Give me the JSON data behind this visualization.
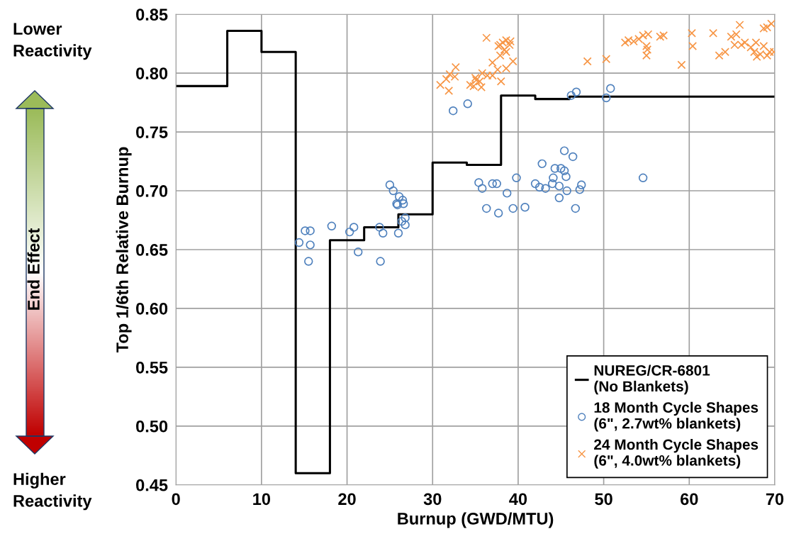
{
  "chart_data": {
    "type": "scatter",
    "xlabel": "Burnup (GWD/MTU)",
    "ylabel": "Top 1/6th Relative Burnup",
    "xlim": [
      0,
      70
    ],
    "xticks": [
      0,
      10,
      20,
      30,
      40,
      50,
      60,
      70
    ],
    "ylim": [
      0.45,
      0.85
    ],
    "yticks": [
      {
        "value": 0.45,
        "label": "0.45"
      },
      {
        "value": 0.5,
        "label": "0.50"
      },
      {
        "value": 0.55,
        "label": "0.55"
      },
      {
        "value": 0.6,
        "label": "0.60"
      },
      {
        "value": 0.65,
        "label": "0.65"
      },
      {
        "value": 0.7,
        "label": "0.70"
      },
      {
        "value": 0.75,
        "label": "0.75"
      },
      {
        "value": 0.8,
        "label": "0.80"
      },
      {
        "value": 0.85,
        "label": "0.85"
      }
    ],
    "grid": true,
    "legend": "bottom right",
    "annotations": [
      "Lower\nReactivity",
      "Higher\nReactivity",
      "End Effect"
    ],
    "series": [
      {
        "name": "NUREG/CR-6801\n(No Blankets)",
        "type": "step",
        "color": "#000000",
        "marker": "none",
        "line_style": "solid",
        "x": [
          0,
          6,
          10,
          14,
          18,
          22,
          26,
          30,
          34,
          38,
          42,
          46,
          70
        ],
        "values": [
          0.789,
          0.836,
          0.818,
          0.46,
          0.658,
          0.669,
          0.68,
          0.724,
          0.722,
          0.781,
          0.778,
          0.78,
          0.78
        ]
      },
      {
        "name": "18 Month Cycle Shapes\n(6\", 2.7wt% blankets)",
        "color": "#4f81bd",
        "marker": "circle",
        "x": [
          14.4,
          15.1,
          15.7,
          15.7,
          15.5,
          18.2,
          20.3,
          20.8,
          21.3,
          23.8,
          24.2,
          23.9,
          25.0,
          25.4,
          26.1,
          25.8,
          26.5,
          26.6,
          25.9,
          26.8,
          26.4,
          26.8,
          26.0,
          32.4,
          34.1,
          46.2,
          46.8,
          50.3,
          50.8,
          35.4,
          35.8,
          37.0,
          37.5,
          39.8,
          38.7,
          36.3,
          37.7,
          39.4,
          40.8,
          42.8,
          42.0,
          42.5,
          43.2,
          44.1,
          44.0,
          44.3,
          45.0,
          45.4,
          45.6,
          45.4,
          46.4,
          44.8,
          44.8,
          45.7,
          46.7,
          47.4,
          47.2,
          54.6
        ],
        "values": [
          0.656,
          0.666,
          0.666,
          0.654,
          0.64,
          0.67,
          0.665,
          0.669,
          0.648,
          0.669,
          0.664,
          0.64,
          0.705,
          0.7,
          0.695,
          0.689,
          0.692,
          0.689,
          0.688,
          0.677,
          0.674,
          0.671,
          0.664,
          0.768,
          0.774,
          0.781,
          0.784,
          0.779,
          0.787,
          0.707,
          0.702,
          0.706,
          0.706,
          0.711,
          0.698,
          0.685,
          0.681,
          0.685,
          0.686,
          0.723,
          0.706,
          0.703,
          0.702,
          0.711,
          0.706,
          0.719,
          0.719,
          0.717,
          0.712,
          0.734,
          0.729,
          0.704,
          0.694,
          0.7,
          0.685,
          0.705,
          0.701,
          0.711
        ]
      },
      {
        "name": "24 Month Cycle Shapes\n(6\", 4.0wt% blankets)",
        "color": "#f79646",
        "marker": "cross",
        "x": [
          30.9,
          31.9,
          31.6,
          32.0,
          32.6,
          32.7,
          34.4,
          34.8,
          35.1,
          35.0,
          35.5,
          35.7,
          35.8,
          36.4,
          37.0,
          37.6,
          38.0,
          37.0,
          36.3,
          38.6,
          39.4,
          37.9,
          38.2,
          38.6,
          38.4,
          39.0,
          37.9,
          38.6,
          37.7,
          39.1,
          48.1,
          50.3,
          52.5,
          52.9,
          53.5,
          54.1,
          54.6,
          55.2,
          55.0,
          55.1,
          55.0,
          56.6,
          57.0,
          59.1,
          60.3,
          60.4,
          62.8,
          63.5,
          64.2,
          64.9,
          65.5,
          65.9,
          65.3,
          66.1,
          66.5,
          67.2,
          67.6,
          67.8,
          67.9,
          68.3,
          68.7,
          69.1,
          69.4,
          69.9,
          68.7,
          69.1,
          69.6
        ],
        "values": [
          0.79,
          0.785,
          0.795,
          0.799,
          0.797,
          0.805,
          0.79,
          0.789,
          0.794,
          0.796,
          0.793,
          0.788,
          0.8,
          0.798,
          0.798,
          0.803,
          0.793,
          0.809,
          0.83,
          0.804,
          0.81,
          0.824,
          0.826,
          0.828,
          0.82,
          0.824,
          0.815,
          0.818,
          0.823,
          0.827,
          0.81,
          0.812,
          0.826,
          0.828,
          0.827,
          0.829,
          0.832,
          0.833,
          0.823,
          0.82,
          0.815,
          0.831,
          0.832,
          0.807,
          0.834,
          0.823,
          0.834,
          0.815,
          0.818,
          0.831,
          0.833,
          0.841,
          0.824,
          0.824,
          0.826,
          0.822,
          0.818,
          0.826,
          0.814,
          0.816,
          0.823,
          0.815,
          0.818,
          0.818,
          0.838,
          0.839,
          0.842
        ]
      }
    ]
  }
}
